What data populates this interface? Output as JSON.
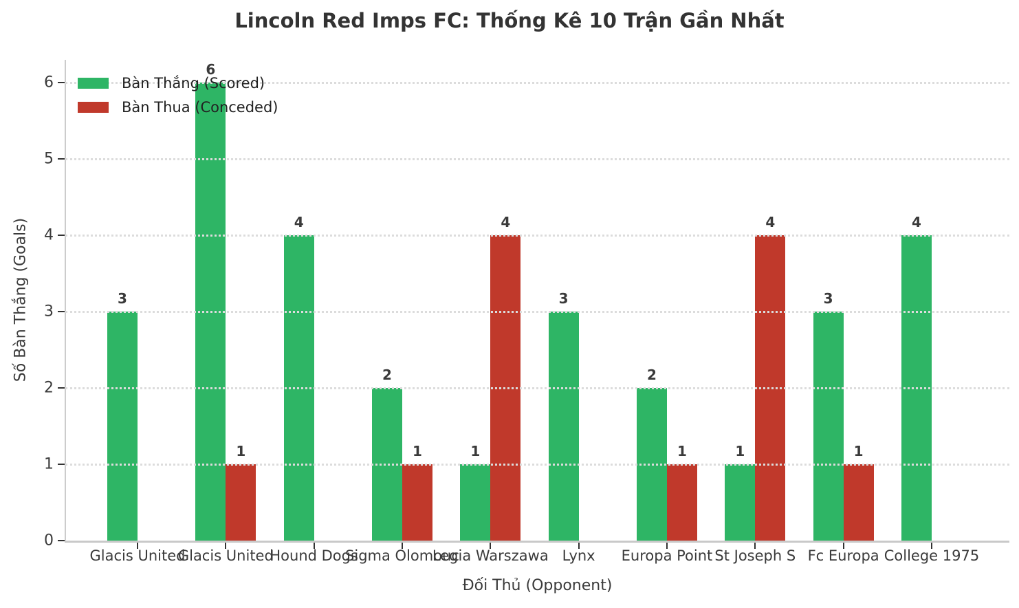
{
  "chart_data": {
    "type": "bar",
    "title": "Lincoln Red Imps FC: Thống Kê 10 Trận Gần Nhất",
    "xlabel": "Đối Thủ (Opponent)",
    "ylabel": "Số Bàn Thắng (Goals)",
    "categories": [
      "Glacis United",
      "Glacis United",
      "Hound Dogs",
      "Sigma Olomouc",
      "Legia Warszawa",
      "Lynx",
      "Europa Point",
      "St Joseph S",
      "Fc Europa",
      "College 1975"
    ],
    "series": [
      {
        "name": "Bàn Thắng (Scored)",
        "color": "#2eb565",
        "values": [
          3,
          6,
          4,
          2,
          1,
          3,
          2,
          1,
          3,
          4
        ]
      },
      {
        "name": "Bàn Thua (Conceded)",
        "color": "#c0392b",
        "values": [
          0,
          1,
          0,
          1,
          4,
          0,
          1,
          4,
          1,
          0
        ]
      }
    ],
    "yticks": [
      0,
      1,
      2,
      3,
      4,
      5,
      6
    ],
    "ylim": [
      0,
      6.3
    ],
    "grid": "horizontal dotted",
    "legend_position": "upper left",
    "bar_value_labels_shown": true,
    "colors": {
      "grid": "#dcdcdc",
      "spine": "#cccccc",
      "text": "#3b3b3b",
      "title": "#333333"
    }
  }
}
